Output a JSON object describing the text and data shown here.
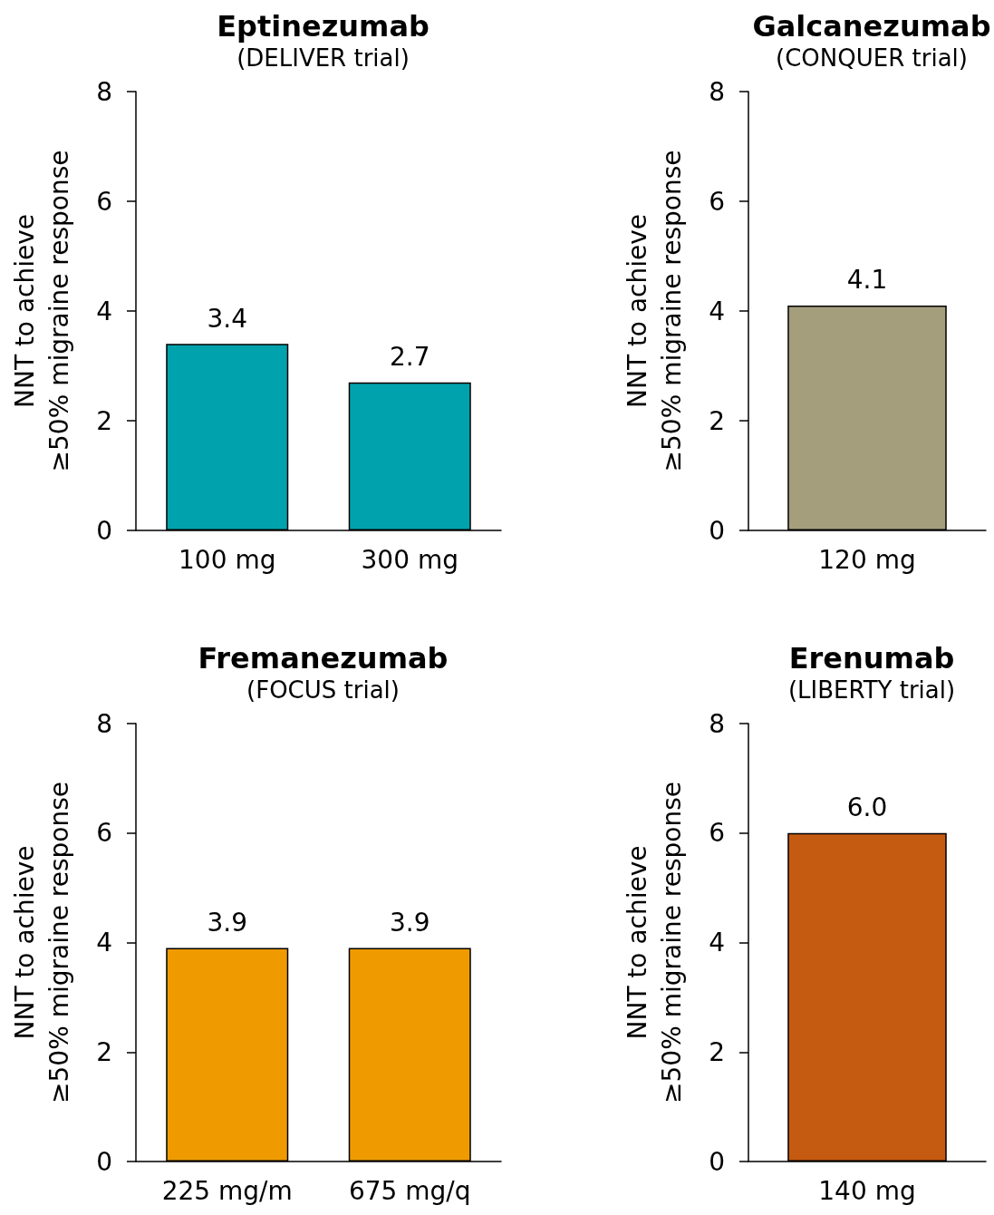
{
  "chart_data": [
    {
      "type": "bar",
      "title": "Eptinezumab",
      "subtitle": "(DELIVER trial)",
      "ylabel": "NNT to achieve\n≥50% migraine response",
      "categories": [
        "100 mg",
        "300 mg"
      ],
      "values": [
        3.4,
        2.7
      ],
      "value_labels": [
        "3.4",
        "2.7"
      ],
      "color": "#00a3ad",
      "ylim": [
        0,
        8
      ],
      "yticks": [
        0,
        2,
        4,
        6,
        8
      ],
      "grid": false
    },
    {
      "type": "bar",
      "title": "Galcanezumab",
      "subtitle": "(CONQUER trial)",
      "ylabel": "NNT to achieve\n≥50% migraine response",
      "categories": [
        "120 mg"
      ],
      "values": [
        4.1
      ],
      "value_labels": [
        "4.1"
      ],
      "color": "#a59e7d",
      "ylim": [
        0,
        8
      ],
      "yticks": [
        0,
        2,
        4,
        6,
        8
      ],
      "grid": false
    },
    {
      "type": "bar",
      "title": "Fremanezumab",
      "subtitle": "(FOCUS trial)",
      "ylabel": "NNT to achieve\n≥50% migraine response",
      "categories": [
        "225 mg/m",
        "675 mg/q"
      ],
      "values": [
        3.9,
        3.9
      ],
      "value_labels": [
        "3.9",
        "3.9"
      ],
      "color": "#ef9b00",
      "ylim": [
        0,
        8
      ],
      "yticks": [
        0,
        2,
        4,
        6,
        8
      ],
      "grid": false
    },
    {
      "type": "bar",
      "title": "Erenumab",
      "subtitle": "(LIBERTY trial)",
      "ylabel": "NNT to achieve\n≥50% migraine response",
      "categories": [
        "140 mg"
      ],
      "values": [
        6.0
      ],
      "value_labels": [
        "6.0"
      ],
      "color": "#c55a11",
      "ylim": [
        0,
        8
      ],
      "yticks": [
        0,
        2,
        4,
        6,
        8
      ],
      "grid": false
    }
  ]
}
